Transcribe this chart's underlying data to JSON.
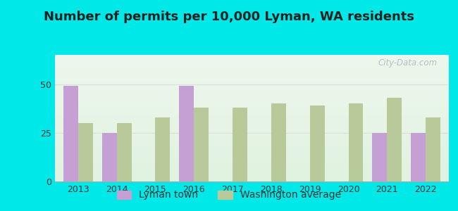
{
  "title": "Number of permits per 10,000 Lyman, WA residents",
  "years": [
    2013,
    2014,
    2015,
    2016,
    2017,
    2018,
    2019,
    2020,
    2021,
    2022
  ],
  "lyman_values": [
    49,
    25,
    0,
    49,
    0,
    0,
    0,
    0,
    25,
    25
  ],
  "wa_values": [
    30,
    30,
    33,
    38,
    38,
    40,
    39,
    40,
    43,
    33
  ],
  "lyman_color": "#c4a0d4",
  "wa_color": "#b8c99a",
  "background_outer": "#00e8e8",
  "title_fontsize": 13,
  "tick_fontsize": 9,
  "legend_fontsize": 10,
  "ylim": [
    0,
    65
  ],
  "yticks": [
    0,
    25,
    50
  ],
  "watermark_text": "City-Data.com",
  "bar_width": 0.38,
  "legend_lyman": "Lyman town",
  "legend_wa": "Washington average",
  "grid_color": "#dddddd",
  "title_color": "#222222"
}
